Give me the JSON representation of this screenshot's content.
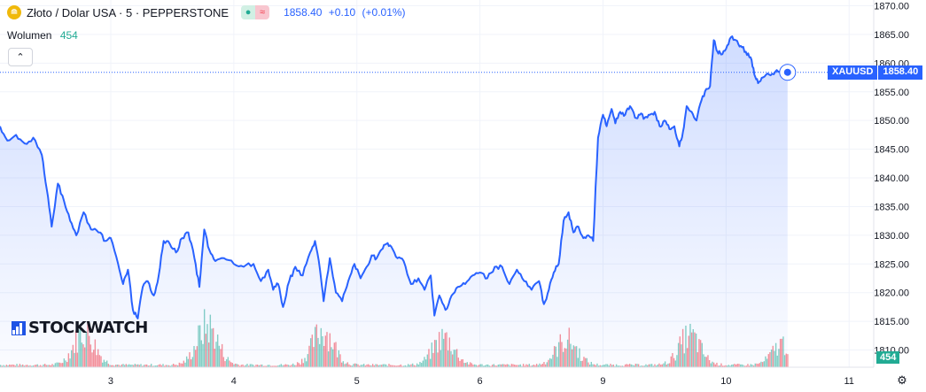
{
  "header": {
    "symbol_title": "Złoto / Dolar USA · 5 · PEPPERSTONE",
    "market_status_open": "●",
    "market_status_delayed": "≈",
    "last_price": "1858.40",
    "change": "+0.10",
    "change_pct": "(+0.01%)"
  },
  "volume_indicator": {
    "label": "Wolumen",
    "value": "454"
  },
  "collapse_glyph": "⌃",
  "watermark": {
    "text": "STOCKWATCH"
  },
  "price_tag": {
    "symbol": "XAUUSD",
    "price": "1858.40"
  },
  "volume_tag": "454",
  "settings_icon": "⚙",
  "colors": {
    "line": "#2962ff",
    "vol_up": "#22ab94",
    "vol_down": "#f23645",
    "accent": "#2962ff"
  },
  "chart_data": {
    "type": "area",
    "x_ticks": [
      "3",
      "4",
      "5",
      "6",
      "9",
      "10",
      "11"
    ],
    "y_ticks": [
      1810,
      1815,
      1820,
      1825,
      1830,
      1835,
      1840,
      1845,
      1850,
      1855,
      1860,
      1865,
      1870
    ],
    "ylim": [
      1807,
      1871
    ],
    "x_range": [
      0,
      7.1
    ],
    "last_x": 6.4,
    "last_price": 1858.4,
    "series": [
      {
        "points": [
          [
            0.0,
            1849.0
          ],
          [
            0.06,
            1846.5
          ],
          [
            0.13,
            1847.5
          ],
          [
            0.2,
            1846.0
          ],
          [
            0.27,
            1847.0
          ],
          [
            0.34,
            1844.0
          ],
          [
            0.38,
            1838.0
          ],
          [
            0.42,
            1831.5
          ],
          [
            0.47,
            1839.0
          ],
          [
            0.52,
            1836.0
          ],
          [
            0.57,
            1832.5
          ],
          [
            0.62,
            1830.0
          ],
          [
            0.68,
            1834.0
          ],
          [
            0.74,
            1831.0
          ],
          [
            0.8,
            1830.5
          ],
          [
            0.86,
            1829.0
          ],
          [
            0.9,
            1829.5
          ],
          [
            0.96,
            1825.0
          ],
          [
            1.0,
            1821.5
          ],
          [
            1.04,
            1824.0
          ],
          [
            1.08,
            1817.0
          ],
          [
            1.12,
            1815.5
          ],
          [
            1.16,
            1821.0
          ],
          [
            1.2,
            1822.0
          ],
          [
            1.25,
            1819.5
          ],
          [
            1.29,
            1823.0
          ],
          [
            1.33,
            1829.0
          ],
          [
            1.38,
            1828.5
          ],
          [
            1.43,
            1827.0
          ],
          [
            1.48,
            1829.5
          ],
          [
            1.53,
            1830.5
          ],
          [
            1.58,
            1826.0
          ],
          [
            1.62,
            1821.0
          ],
          [
            1.66,
            1831.0
          ],
          [
            1.7,
            1827.5
          ],
          [
            1.75,
            1825.5
          ],
          [
            1.82,
            1826.0
          ],
          [
            1.9,
            1825.0
          ],
          [
            1.98,
            1824.5
          ],
          [
            2.06,
            1825.0
          ],
          [
            2.12,
            1822.0
          ],
          [
            2.18,
            1824.0
          ],
          [
            2.22,
            1820.5
          ],
          [
            2.26,
            1821.5
          ],
          [
            2.3,
            1817.5
          ],
          [
            2.35,
            1822.0
          ],
          [
            2.4,
            1824.5
          ],
          [
            2.46,
            1823.0
          ],
          [
            2.52,
            1827.0
          ],
          [
            2.56,
            1829.0
          ],
          [
            2.6,
            1824.0
          ],
          [
            2.63,
            1818.5
          ],
          [
            2.68,
            1826.0
          ],
          [
            2.73,
            1820.0
          ],
          [
            2.78,
            1818.5
          ],
          [
            2.83,
            1822.0
          ],
          [
            2.88,
            1825.0
          ],
          [
            2.93,
            1822.5
          ],
          [
            2.98,
            1824.5
          ],
          [
            3.02,
            1826.5
          ],
          [
            3.06,
            1826.0
          ],
          [
            3.1,
            1827.5
          ],
          [
            3.14,
            1828.5
          ],
          [
            3.18,
            1828.0
          ],
          [
            3.23,
            1826.0
          ],
          [
            3.28,
            1825.5
          ],
          [
            3.34,
            1821.5
          ],
          [
            3.4,
            1822.5
          ],
          [
            3.45,
            1820.5
          ],
          [
            3.5,
            1823.0
          ],
          [
            3.53,
            1816.0
          ],
          [
            3.57,
            1819.5
          ],
          [
            3.62,
            1817.0
          ],
          [
            3.67,
            1819.5
          ],
          [
            3.72,
            1821.0
          ],
          [
            3.78,
            1821.5
          ],
          [
            3.84,
            1823.0
          ],
          [
            3.9,
            1823.5
          ],
          [
            3.96,
            1822.5
          ],
          [
            4.02,
            1824.5
          ],
          [
            4.08,
            1824.5
          ],
          [
            4.14,
            1821.5
          ],
          [
            4.2,
            1824.0
          ],
          [
            4.26,
            1822.0
          ],
          [
            4.32,
            1820.5
          ],
          [
            4.38,
            1822.0
          ],
          [
            4.42,
            1818.0
          ],
          [
            4.46,
            1820.5
          ],
          [
            4.5,
            1823.5
          ],
          [
            4.54,
            1825.0
          ],
          [
            4.58,
            1832.5
          ],
          [
            4.62,
            1834.0
          ],
          [
            4.66,
            1830.5
          ],
          [
            4.7,
            1831.5
          ],
          [
            4.74,
            1829.5
          ],
          [
            4.78,
            1830.0
          ],
          [
            4.82,
            1829.0
          ],
          [
            4.86,
            1847.0
          ],
          [
            4.9,
            1851.0
          ],
          [
            4.93,
            1849.0
          ],
          [
            4.97,
            1852.0
          ],
          [
            5.0,
            1849.5
          ],
          [
            5.04,
            1851.5
          ],
          [
            5.08,
            1851.0
          ],
          [
            5.12,
            1852.5
          ],
          [
            5.16,
            1850.5
          ],
          [
            5.2,
            1851.0
          ],
          [
            5.24,
            1850.5
          ],
          [
            5.28,
            1851.0
          ],
          [
            5.32,
            1851.5
          ],
          [
            5.36,
            1849.0
          ],
          [
            5.4,
            1850.0
          ],
          [
            5.44,
            1848.5
          ],
          [
            5.48,
            1849.0
          ],
          [
            5.52,
            1845.5
          ],
          [
            5.55,
            1848.0
          ],
          [
            5.58,
            1852.5
          ],
          [
            5.62,
            1851.5
          ],
          [
            5.66,
            1850.0
          ],
          [
            5.7,
            1853.5
          ],
          [
            5.74,
            1855.5
          ],
          [
            5.77,
            1856.0
          ],
          [
            5.8,
            1864.0
          ],
          [
            5.83,
            1862.0
          ],
          [
            5.86,
            1861.5
          ],
          [
            5.9,
            1862.5
          ],
          [
            5.94,
            1864.5
          ],
          [
            5.98,
            1864.0
          ],
          [
            6.02,
            1863.0
          ],
          [
            6.06,
            1862.0
          ],
          [
            6.1,
            1861.0
          ],
          [
            6.13,
            1858.0
          ],
          [
            6.16,
            1856.5
          ],
          [
            6.2,
            1857.5
          ],
          [
            6.25,
            1858.0
          ],
          [
            6.3,
            1858.5
          ],
          [
            6.35,
            1858.2
          ],
          [
            6.4,
            1858.4
          ]
        ]
      }
    ],
    "volume_ylim": [
      0,
      300
    ],
    "volume_clusters": [
      {
        "center": 0.68,
        "peak": 170
      },
      {
        "center": 1.68,
        "peak": 200
      },
      {
        "center": 2.62,
        "peak": 180
      },
      {
        "center": 3.6,
        "peak": 140
      },
      {
        "center": 4.6,
        "peak": 130
      },
      {
        "center": 5.6,
        "peak": 150
      },
      {
        "center": 6.36,
        "peak": 110
      }
    ]
  }
}
